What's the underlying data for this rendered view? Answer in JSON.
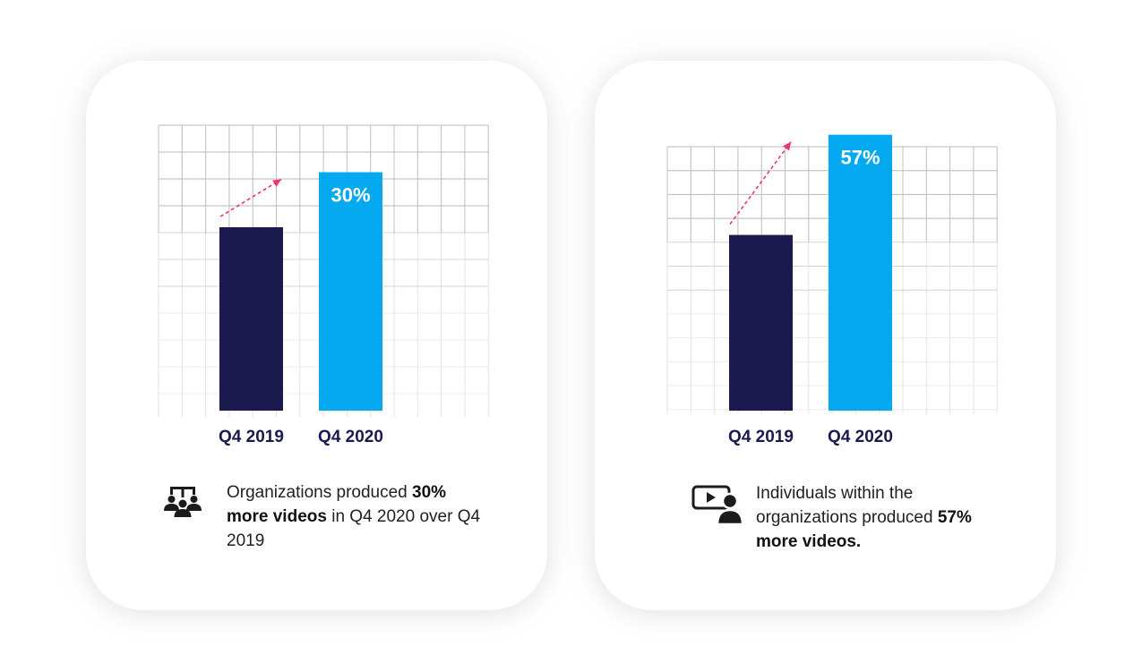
{
  "chart_data": [
    {
      "type": "bar",
      "categories": [
        "Q4 2019",
        "Q4 2020"
      ],
      "values": [
        100,
        130
      ],
      "ylim": [
        0,
        160
      ],
      "data_labels": [
        "",
        "30%"
      ],
      "colors": [
        "#1b1a4f",
        "#05a9f0"
      ],
      "arrow_color": "#f0356a",
      "grid": true
    },
    {
      "type": "bar",
      "categories": [
        "Q4 2019",
        "Q4 2020"
      ],
      "values": [
        100,
        157
      ],
      "ylim": [
        0,
        167
      ],
      "data_labels": [
        "",
        "57%"
      ],
      "colors": [
        "#1b1a4f",
        "#05a9f0"
      ],
      "arrow_color": "#f0356a",
      "grid": true
    }
  ],
  "captions": {
    "left": {
      "icon": "team-hierarchy-icon",
      "pre": "Organizations produced ",
      "bold": "30% more videos",
      "post": " in Q4 2020 over Q4 2019"
    },
    "right": {
      "icon": "video-presenter-icon",
      "pre": "Individuals within the organizations produced ",
      "bold": "57% more videos.",
      "post": ""
    }
  }
}
